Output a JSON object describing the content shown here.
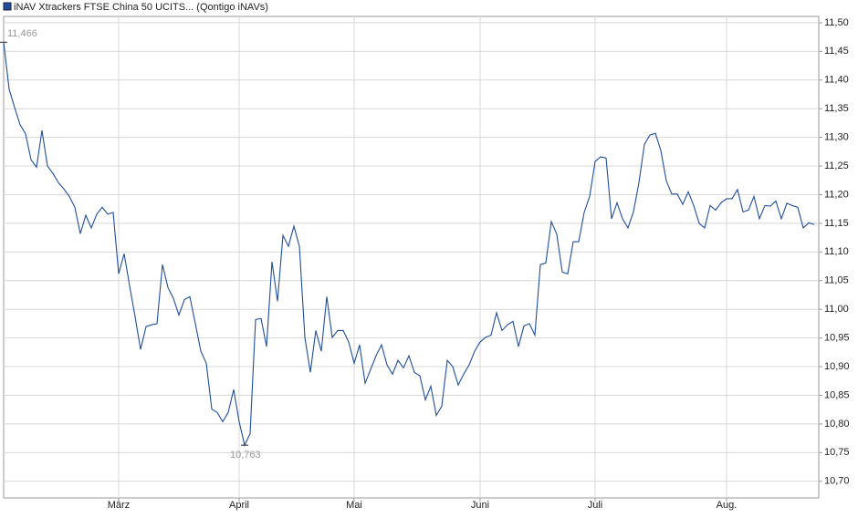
{
  "chart_data": {
    "type": "line",
    "series": [
      {
        "name": "iNAV Xtrackers FTSE China 50 UCITS... (Qontigo iNAVs)",
        "color": "#1f4e9c",
        "values": [
          11.466,
          11.384,
          11.352,
          11.322,
          11.306,
          11.261,
          11.248,
          11.312,
          11.25,
          11.237,
          11.221,
          11.21,
          11.197,
          11.178,
          11.132,
          11.164,
          11.142,
          11.166,
          11.178,
          11.166,
          11.169,
          11.062,
          11.097,
          11.041,
          10.987,
          10.93,
          10.97,
          10.973,
          10.975,
          11.078,
          11.038,
          11.019,
          10.99,
          11.017,
          11.022,
          10.975,
          10.927,
          10.906,
          10.826,
          10.82,
          10.804,
          10.82,
          10.86,
          10.804,
          10.763,
          10.783,
          10.982,
          10.984,
          10.935,
          11.083,
          11.014,
          11.129,
          11.11,
          11.145,
          11.11,
          10.951,
          10.89,
          10.963,
          10.927,
          11.022,
          10.951,
          10.963,
          10.963,
          10.943,
          10.906,
          10.938,
          10.871,
          10.895,
          10.919,
          10.938,
          10.903,
          10.887,
          10.911,
          10.898,
          10.919,
          10.89,
          10.884,
          10.842,
          10.866,
          10.815,
          10.831,
          10.911,
          10.9,
          10.868,
          10.887,
          10.903,
          10.927,
          10.943,
          10.951,
          10.955,
          10.994,
          10.963,
          10.973,
          10.979,
          10.935,
          10.971,
          10.975,
          10.955,
          11.078,
          11.081,
          11.153,
          11.131,
          11.065,
          11.062,
          11.118,
          11.118,
          11.169,
          11.197,
          11.258,
          11.266,
          11.264,
          11.158,
          11.186,
          11.158,
          11.142,
          11.17,
          11.221,
          11.288,
          11.304,
          11.307,
          11.277,
          11.224,
          11.201,
          11.201,
          11.183,
          11.205,
          11.181,
          11.15,
          11.142,
          11.181,
          11.173,
          11.186,
          11.193,
          11.193,
          11.209,
          11.17,
          11.173,
          11.197,
          11.158,
          11.181,
          11.18,
          11.189,
          11.158,
          11.185,
          11.181,
          11.178,
          11.142,
          11.151,
          11.148
        ],
        "value_labels": [
          "11,466",
          null,
          null,
          null,
          null,
          null,
          null,
          null,
          null,
          null,
          null,
          null,
          null,
          null,
          null,
          null,
          null,
          null,
          null,
          null,
          null,
          null,
          null,
          null,
          null,
          null,
          null,
          null,
          null,
          null,
          null,
          null,
          null,
          null,
          null,
          null,
          null,
          null,
          null,
          null,
          null,
          null,
          null,
          null,
          "10,763",
          null,
          null,
          null,
          null,
          null,
          null,
          null,
          null,
          null,
          null,
          null,
          null,
          null,
          null,
          null,
          null,
          null,
          null,
          null,
          null,
          null,
          null,
          null,
          null,
          null,
          null,
          null,
          null,
          null,
          null,
          null,
          null,
          null,
          null,
          null,
          null,
          null,
          null,
          null,
          null,
          null,
          null,
          null,
          null,
          null,
          null,
          null,
          null,
          null,
          null,
          null,
          null,
          null,
          null,
          null,
          null,
          null,
          null,
          null,
          null,
          null,
          null,
          null,
          null,
          null,
          null,
          null,
          null,
          null,
          null,
          null,
          null,
          null,
          null,
          null,
          null,
          null,
          null,
          null,
          null,
          null,
          null,
          null,
          null,
          null,
          null,
          null,
          null,
          null,
          null,
          null,
          null,
          null,
          null,
          null,
          null,
          null,
          null,
          null,
          null,
          null,
          null,
          null,
          null
        ]
      }
    ],
    "xlim": [
      0,
      148
    ],
    "xticks": [
      {
        "value": 21,
        "label": "März"
      },
      {
        "value": 43,
        "label": "April"
      },
      {
        "value": 64,
        "label": "Mai"
      },
      {
        "value": 87,
        "label": "Juni"
      },
      {
        "value": 108,
        "label": "Juli"
      },
      {
        "value": 132,
        "label": "Aug."
      }
    ],
    "ylim": [
      10.671,
      11.511
    ],
    "yticks": [
      {
        "value": 10.7,
        "label": "10,70"
      },
      {
        "value": 10.75,
        "label": "10,75"
      },
      {
        "value": 10.8,
        "label": "10,80"
      },
      {
        "value": 10.85,
        "label": "10,85"
      },
      {
        "value": 10.9,
        "label": "10,90"
      },
      {
        "value": 10.95,
        "label": "10,95"
      },
      {
        "value": 11.0,
        "label": "11,00"
      },
      {
        "value": 11.05,
        "label": "11,05"
      },
      {
        "value": 11.1,
        "label": "11,10"
      },
      {
        "value": 11.15,
        "label": "11,15"
      },
      {
        "value": 11.2,
        "label": "11,20"
      },
      {
        "value": 11.25,
        "label": "11,25"
      },
      {
        "value": 11.3,
        "label": "11,30"
      },
      {
        "value": 11.35,
        "label": "11,35"
      },
      {
        "value": 11.4,
        "label": "11,40"
      },
      {
        "value": 11.45,
        "label": "11,45"
      },
      {
        "value": 11.5,
        "label": "11,50"
      }
    ],
    "grid": true,
    "legend": "top-left"
  }
}
